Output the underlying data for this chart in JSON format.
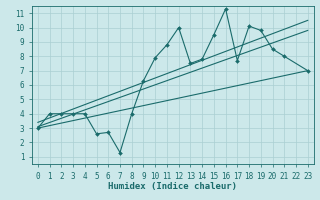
{
  "xlabel": "Humidex (Indice chaleur)",
  "ylabel": "",
  "xlim": [
    -0.5,
    23.5
  ],
  "ylim": [
    0.5,
    11.5
  ],
  "xticks": [
    0,
    1,
    2,
    3,
    4,
    5,
    6,
    7,
    8,
    9,
    10,
    11,
    12,
    13,
    14,
    15,
    16,
    17,
    18,
    19,
    20,
    21,
    22,
    23
  ],
  "yticks": [
    1,
    2,
    3,
    4,
    5,
    6,
    7,
    8,
    9,
    10,
    11
  ],
  "bg_color": "#cce8ea",
  "grid_color": "#aacfd2",
  "line_color": "#1a6b6b",
  "data_x": [
    0,
    1,
    2,
    3,
    4,
    5,
    6,
    7,
    8,
    9,
    10,
    11,
    12,
    13,
    14,
    15,
    16,
    17,
    18,
    19,
    20,
    21,
    23
  ],
  "data_y": [
    3,
    4,
    4,
    4,
    4,
    2.6,
    2.7,
    1.3,
    4,
    6.3,
    7.9,
    8.8,
    10.0,
    7.5,
    7.8,
    9.5,
    11.3,
    7.7,
    10.1,
    9.8,
    8.5,
    8.0,
    7.0
  ],
  "reg_line1": [
    [
      0,
      3.0
    ],
    [
      23,
      7.0
    ]
  ],
  "reg_line2": [
    [
      0,
      3.1
    ],
    [
      23,
      9.8
    ]
  ],
  "reg_line3": [
    [
      0,
      3.4
    ],
    [
      23,
      10.5
    ]
  ],
  "font_size_label": 6.5,
  "font_size_tick": 5.5,
  "marker": "D",
  "marker_size": 2.0,
  "line_width": 0.8
}
